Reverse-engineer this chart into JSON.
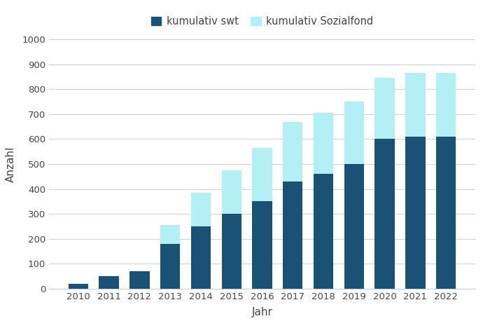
{
  "years": [
    2010,
    2011,
    2012,
    2013,
    2014,
    2015,
    2016,
    2017,
    2018,
    2019,
    2020,
    2021,
    2022
  ],
  "swt": [
    20,
    50,
    70,
    180,
    250,
    300,
    350,
    430,
    460,
    500,
    600,
    610,
    610
  ],
  "sozialfond": [
    0,
    0,
    0,
    75,
    135,
    175,
    215,
    240,
    245,
    250,
    245,
    255,
    255
  ],
  "color_swt": "#1a5276",
  "color_sozialfond": "#b3f0f5",
  "ylabel": "Anzahl",
  "xlabel": "Jahr",
  "legend_swt": "kumulativ swt",
  "legend_sozialfond": "kumulativ Sozialfond",
  "ylim": [
    0,
    1000
  ],
  "yticks": [
    0,
    100,
    200,
    300,
    400,
    500,
    600,
    700,
    800,
    900,
    1000
  ],
  "background_color": "#ffffff",
  "grid_color": "#d0d0d0",
  "bar_width": 0.65
}
